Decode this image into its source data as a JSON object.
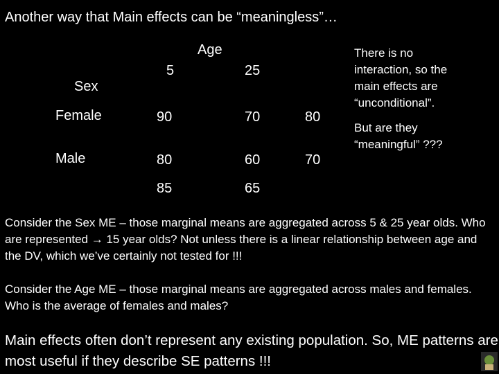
{
  "title": "Another way that Main effects can be “meaningless”…",
  "table": {
    "factor_column": "Age",
    "factor_row": "Sex",
    "column_levels": [
      "5",
      "25"
    ],
    "rows": [
      {
        "label": "Female",
        "cells": [
          "90",
          "70"
        ],
        "marginal": "80"
      },
      {
        "label": "Male",
        "cells": [
          "80",
          "60"
        ],
        "marginal": "70"
      }
    ],
    "column_marginals": [
      "85",
      "65"
    ]
  },
  "side_note": {
    "lines": [
      "There is no interaction, so the main effects are “unconditional”.",
      "But are they “meaningful” ???"
    ]
  },
  "paragraphs": [
    "Consider the Sex ME – those marginal means are aggregated across 5 & 25 year olds.  Who are represented → 15 year olds? Not unless there is a linear relationship between age and the DV, which we’ve certainly not tested for !!!",
    "Consider the Age ME – those marginal means are aggregated across males and females.  Who is the average of females and males?",
    "Main effects often don’t represent any existing population.  So, ME patterns are most useful if they describe SE patterns !!!"
  ]
}
